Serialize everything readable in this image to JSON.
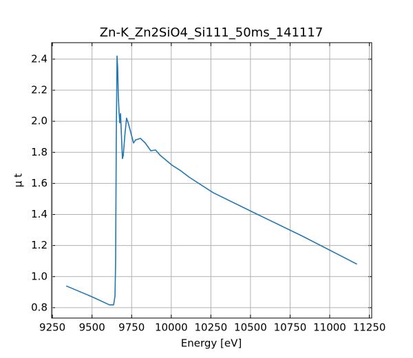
{
  "chart_data": {
    "type": "line",
    "title": "Zn-K_Zn2SiO4_Si111_50ms_141117",
    "x_label": "Energy [eV]",
    "y_label": "μ t",
    "x": [
      9337,
      9500,
      9610,
      9636,
      9645,
      9649,
      9653,
      9658,
      9662,
      9666,
      9671,
      9675,
      9680,
      9686,
      9692,
      9697,
      9708,
      9718,
      9731,
      9762,
      9775,
      9805,
      9836,
      9871,
      9901,
      9931,
      10005,
      10062,
      10113,
      10265,
      10525,
      10829,
      11172
    ],
    "values": [
      0.94,
      0.87,
      0.818,
      0.818,
      0.875,
      1.1,
      1.9,
      2.42,
      2.34,
      2.16,
      2.05,
      1.99,
      2.05,
      1.9,
      1.76,
      1.78,
      1.92,
      2.02,
      1.98,
      1.86,
      1.88,
      1.89,
      1.86,
      1.81,
      1.815,
      1.78,
      1.717,
      1.68,
      1.64,
      1.54,
      1.41,
      1.26,
      1.08
    ],
    "color": "#1f77b4",
    "xlim": [
      9245,
      11265
    ],
    "xticks": [
      9250,
      9500,
      9750,
      10000,
      10250,
      10500,
      10750,
      11000,
      11250
    ],
    "ylim": [
      0.733,
      2.506
    ],
    "yticks": [
      0.8,
      {
        "value": 1.0,
        "label": "1.0"
      },
      1.2,
      1.4,
      1.6,
      1.8,
      {
        "value": 2.0,
        "label": "2.0"
      },
      2.2,
      2.4
    ],
    "grid": true
  }
}
